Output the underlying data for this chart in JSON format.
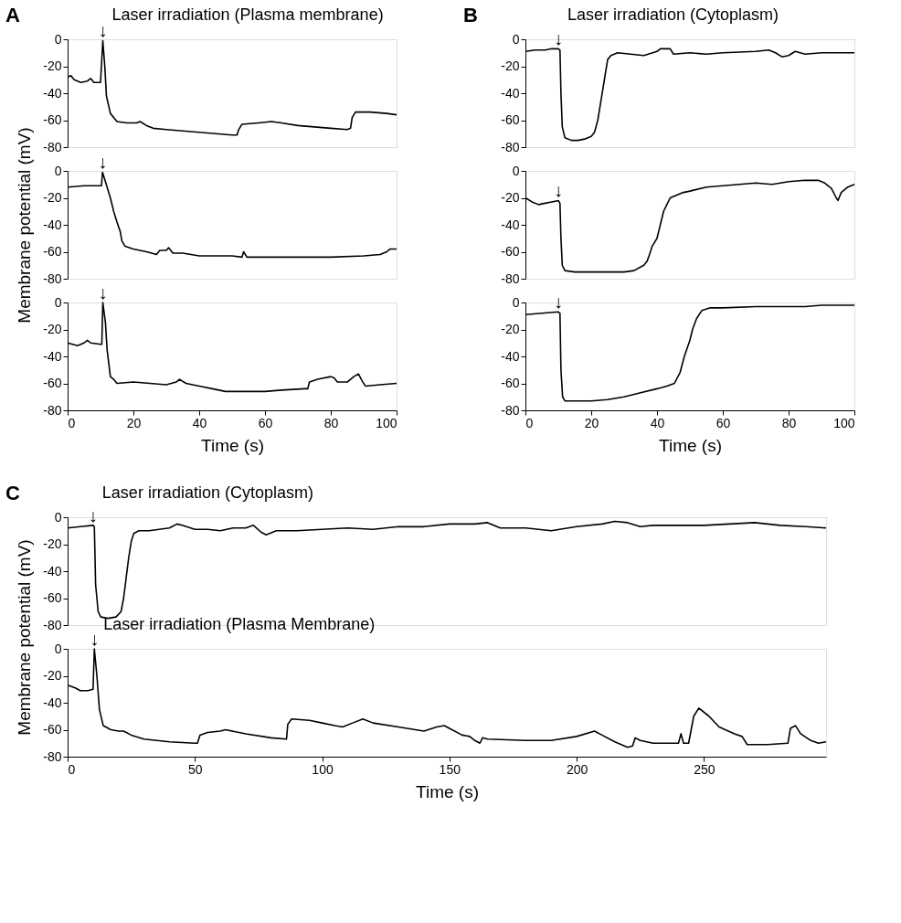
{
  "chart_data": [
    {
      "type": "line",
      "title": "A",
      "annotations": [
        {
          "text": "↓",
          "x": 10.7,
          "y": -1
        },
        "Laser irradiation (Plasma membrane)"
      ],
      "xlim": [
        0,
        100
      ],
      "ylim": [
        -80,
        0
      ],
      "yticks": [
        -80,
        -60,
        -40,
        -20,
        0
      ],
      "tick_labels": "y",
      "x": [
        0,
        1,
        2,
        4,
        6,
        7,
        8,
        10,
        10.7,
        11.3,
        11.8,
        13,
        15,
        18,
        21,
        22,
        24,
        26,
        30,
        35,
        40,
        45,
        50,
        51.5,
        52,
        53,
        58,
        62,
        65,
        70,
        75,
        80,
        85,
        86,
        86.5,
        87.5,
        92,
        97,
        100
      ],
      "series": [
        {
          "color": "#000000",
          "values": [
            -28,
            -27,
            -30,
            -32,
            -31,
            -29,
            -32,
            -32,
            -1,
            -20,
            -42,
            -55,
            -61,
            -62,
            -62,
            -61,
            -64,
            -66,
            -67,
            -68,
            -69,
            -70,
            -71,
            -71,
            -67,
            -63,
            -62,
            -61,
            -62,
            -64,
            -65,
            -66,
            -67,
            -66,
            -58,
            -54,
            -54,
            -55,
            -56
          ]
        }
      ]
    },
    {
      "type": "line",
      "annotations": [
        {
          "text": "↓",
          "x": 10.6,
          "y": -1
        }
      ],
      "xlim": [
        0,
        100
      ],
      "ylim": [
        -80,
        0
      ],
      "yticks": [
        -80,
        -60,
        -40,
        -20,
        0
      ],
      "ylabel": "Membrane potential (mV)",
      "tick_labels": "y",
      "x": [
        0,
        5,
        10,
        10.3,
        10.6,
        11,
        12,
        13,
        14,
        15,
        16,
        16.5,
        17.5,
        20,
        24,
        27,
        28,
        30,
        30.7,
        32,
        35,
        40,
        50,
        53,
        53.5,
        54.5,
        60,
        70,
        80,
        90,
        95,
        97,
        98,
        100
      ],
      "series": [
        {
          "color": "#000000",
          "values": [
            -12,
            -11,
            -11,
            -11,
            -1,
            -4,
            -12,
            -20,
            -30,
            -38,
            -45,
            -52,
            -56,
            -58,
            -60,
            -62,
            -59,
            -59,
            -57,
            -61,
            -61,
            -63,
            -63,
            -64,
            -60,
            -64,
            -64,
            -64,
            -64,
            -63,
            -62,
            -60,
            -58,
            -58
          ]
        }
      ]
    },
    {
      "type": "line",
      "annotations": [
        {
          "text": "↓",
          "x": 10.7,
          "y": 0
        }
      ],
      "xlim": [
        0,
        100
      ],
      "ylim": [
        -80,
        0
      ],
      "yticks": [
        -80,
        -60,
        -40,
        -20,
        0
      ],
      "xticks": [
        0,
        20,
        40,
        60,
        80,
        100
      ],
      "xlabel": "Time (s)",
      "x": [
        0,
        3,
        5,
        6,
        7,
        10,
        10.4,
        10.7,
        11.5,
        12,
        13,
        14,
        15,
        20,
        25,
        30,
        33,
        34,
        36,
        40,
        44,
        48,
        55,
        60,
        65,
        72,
        73,
        73.5,
        76,
        80,
        81,
        82,
        85,
        87,
        88.4,
        89.5,
        90.5,
        95,
        100
      ],
      "series": [
        {
          "color": "#000000",
          "values": [
            -30,
            -32,
            -30,
            -28,
            -30,
            -31,
            -31,
            0,
            -15,
            -35,
            -55,
            -57,
            -60,
            -59,
            -60,
            -61,
            -59,
            -57,
            -60,
            -62,
            -64,
            -66,
            -66,
            -66,
            -65,
            -64,
            -64,
            -59,
            -57,
            -55,
            -56,
            -59,
            -59,
            -55,
            -53,
            -58,
            -62,
            -61,
            -60
          ]
        }
      ]
    },
    {
      "type": "line",
      "title": "B",
      "annotations": [
        {
          "text": "↓",
          "x": 10,
          "y": -7
        },
        "Laser irradiation (Cytoplasm)"
      ],
      "xlim": [
        0,
        100
      ],
      "ylim": [
        -80,
        0
      ],
      "yticks": [
        -80,
        -60,
        -40,
        -20,
        0
      ],
      "tick_labels": "y",
      "x": [
        0,
        3,
        6,
        8,
        10,
        10.5,
        10.8,
        11.2,
        12,
        14,
        16,
        18,
        20,
        21,
        22,
        23,
        24,
        25,
        26,
        28,
        32,
        36,
        40,
        41,
        44,
        45,
        50,
        55,
        60,
        70,
        74,
        76,
        78,
        80,
        82,
        85,
        90,
        95,
        100
      ],
      "series": [
        {
          "color": "#000000",
          "values": [
            -9,
            -8,
            -8,
            -7,
            -7,
            -8,
            -40,
            -65,
            -73,
            -75,
            -75,
            -74,
            -72,
            -69,
            -60,
            -45,
            -30,
            -15,
            -12,
            -10,
            -11,
            -12,
            -9,
            -7,
            -7,
            -11,
            -10,
            -11,
            -10,
            -9,
            -8,
            -10,
            -13,
            -12,
            -9,
            -11,
            -10,
            -10,
            -10
          ]
        }
      ]
    },
    {
      "type": "line",
      "annotations": [
        {
          "text": "↓",
          "x": 10,
          "y": -22
        }
      ],
      "xlim": [
        0,
        100
      ],
      "ylim": [
        -80,
        0
      ],
      "yticks": [
        -80,
        -60,
        -40,
        -20,
        0
      ],
      "tick_labels": "y",
      "x": [
        0,
        2,
        4,
        6,
        8,
        10,
        10.5,
        10.8,
        11.2,
        12,
        15,
        20,
        25,
        30,
        33,
        36,
        37,
        38,
        38.5,
        40,
        41,
        42,
        43,
        44,
        46,
        48,
        50,
        55,
        60,
        70,
        75,
        80,
        85,
        89,
        91,
        93,
        94.5,
        95,
        96,
        98,
        100
      ],
      "series": [
        {
          "color": "#000000",
          "values": [
            -20,
            -23,
            -25,
            -24,
            -23,
            -22,
            -24,
            -50,
            -70,
            -74,
            -75,
            -75,
            -75,
            -75,
            -74,
            -70,
            -67,
            -60,
            -56,
            -50,
            -40,
            -30,
            -25,
            -20,
            -18,
            -16,
            -15,
            -12,
            -11,
            -9,
            -10,
            -8,
            -7,
            -7,
            -9,
            -13,
            -20,
            -22,
            -16,
            -12,
            -10
          ]
        }
      ]
    },
    {
      "type": "line",
      "annotations": [
        {
          "text": "↓",
          "x": 10,
          "y": -7
        }
      ],
      "xlim": [
        0,
        100
      ],
      "ylim": [
        -80,
        0
      ],
      "yticks": [
        -80,
        -60,
        -40,
        -20,
        0
      ],
      "xticks": [
        0,
        20,
        40,
        60,
        80,
        100
      ],
      "xlabel": "Time (s)",
      "x": [
        0,
        5,
        10,
        10.5,
        10.8,
        11.3,
        12,
        15,
        20,
        25,
        30,
        35,
        40,
        43,
        45.3,
        47,
        48.3,
        50,
        50.8,
        52,
        53.6,
        56,
        60,
        70,
        80,
        85,
        90,
        95,
        100
      ],
      "series": [
        {
          "color": "#000000",
          "values": [
            -9,
            -8,
            -7,
            -8,
            -50,
            -70,
            -73,
            -73,
            -73,
            -72,
            -70,
            -67,
            -64,
            -62,
            -60,
            -52,
            -40,
            -28,
            -20,
            -12,
            -6,
            -4,
            -4,
            -3,
            -3,
            -3,
            -2,
            -2,
            -2
          ]
        }
      ]
    },
    {
      "type": "line",
      "title": "C",
      "annotations": [
        {
          "text": "↓",
          "x": 10,
          "y": -6
        },
        "Laser irradiation (Cytoplasm)"
      ],
      "xlim": [
        0,
        298
      ],
      "ylim": [
        -80,
        0
      ],
      "yticks": [
        -80,
        -60,
        -40,
        -20,
        0
      ],
      "tick_labels": "y",
      "x": [
        0,
        5,
        10,
        10.5,
        11,
        12,
        13,
        16,
        19,
        21,
        22,
        23,
        24,
        25,
        26,
        28,
        32,
        36,
        40,
        43,
        45,
        50,
        55,
        60,
        65,
        70,
        73,
        76,
        78,
        82,
        90,
        100,
        110,
        120,
        130,
        140,
        150,
        160,
        165,
        170,
        180,
        190,
        200,
        210,
        215,
        220,
        225,
        230,
        240,
        250,
        260,
        270,
        280,
        290,
        298
      ],
      "series": [
        {
          "color": "#000000",
          "values": [
            -8,
            -7,
            -6,
            -7,
            -50,
            -70,
            -74,
            -75,
            -74,
            -70,
            -60,
            -45,
            -30,
            -18,
            -12,
            -10,
            -10,
            -9,
            -8,
            -5,
            -6,
            -9,
            -9,
            -10,
            -8,
            -8,
            -6,
            -11,
            -13,
            -10,
            -10,
            -9,
            -8,
            -9,
            -7,
            -7,
            -5,
            -5,
            -4,
            -8,
            -8,
            -10,
            -7,
            -5,
            -3,
            -4,
            -7,
            -6,
            -6,
            -6,
            -5,
            -4,
            -6,
            -7,
            -8
          ]
        }
      ]
    },
    {
      "type": "line",
      "annotations": [
        {
          "text": "↓",
          "x": 10.5,
          "y": 0
        },
        "Laser irradiation (Plasma Membrane)"
      ],
      "xlim": [
        0,
        298
      ],
      "ylim": [
        -80,
        0
      ],
      "yticks": [
        -80,
        -60,
        -40,
        -20,
        0
      ],
      "xticks": [
        0,
        50,
        100,
        150,
        200,
        250
      ],
      "xlabel": "Time (s)",
      "ylabel": "Membrane potential (mV)",
      "x": [
        0,
        3,
        5,
        8,
        10,
        10.5,
        11.5,
        12.5,
        14,
        17,
        20,
        22,
        25,
        30,
        40,
        50,
        51,
        52,
        55,
        60,
        62,
        70,
        80,
        86,
        86.5,
        88,
        95,
        100,
        105,
        108,
        112,
        116,
        120,
        130,
        140,
        145,
        148,
        150,
        155,
        158,
        160,
        162,
        163,
        165,
        180,
        190,
        200,
        207,
        210,
        215,
        220,
        222,
        223,
        225,
        230,
        240,
        241,
        242,
        244,
        245,
        246,
        248,
        252,
        256,
        262,
        265,
        267,
        275,
        283,
        284,
        286,
        288,
        292,
        295,
        298
      ],
      "series": [
        {
          "color": "#000000",
          "values": [
            -27,
            -29,
            -31,
            -31,
            -30,
            0,
            -20,
            -45,
            -57,
            -60,
            -61,
            -61,
            -64,
            -67,
            -69,
            -70,
            -70,
            -64,
            -62,
            -61,
            -60,
            -63,
            -66,
            -67,
            -56,
            -52,
            -53,
            -55,
            -57,
            -58,
            -55,
            -52,
            -55,
            -58,
            -61,
            -58,
            -57,
            -59,
            -64,
            -65,
            -68,
            -70,
            -66,
            -67,
            -68,
            -68,
            -65,
            -61,
            -64,
            -69,
            -73,
            -72,
            -66,
            -68,
            -70,
            -70,
            -63,
            -70,
            -70,
            -60,
            -50,
            -44,
            -50,
            -58,
            -63,
            -65,
            -71,
            -71,
            -70,
            -59,
            -57,
            -63,
            -68,
            -70,
            -69
          ]
        }
      ]
    }
  ]
}
